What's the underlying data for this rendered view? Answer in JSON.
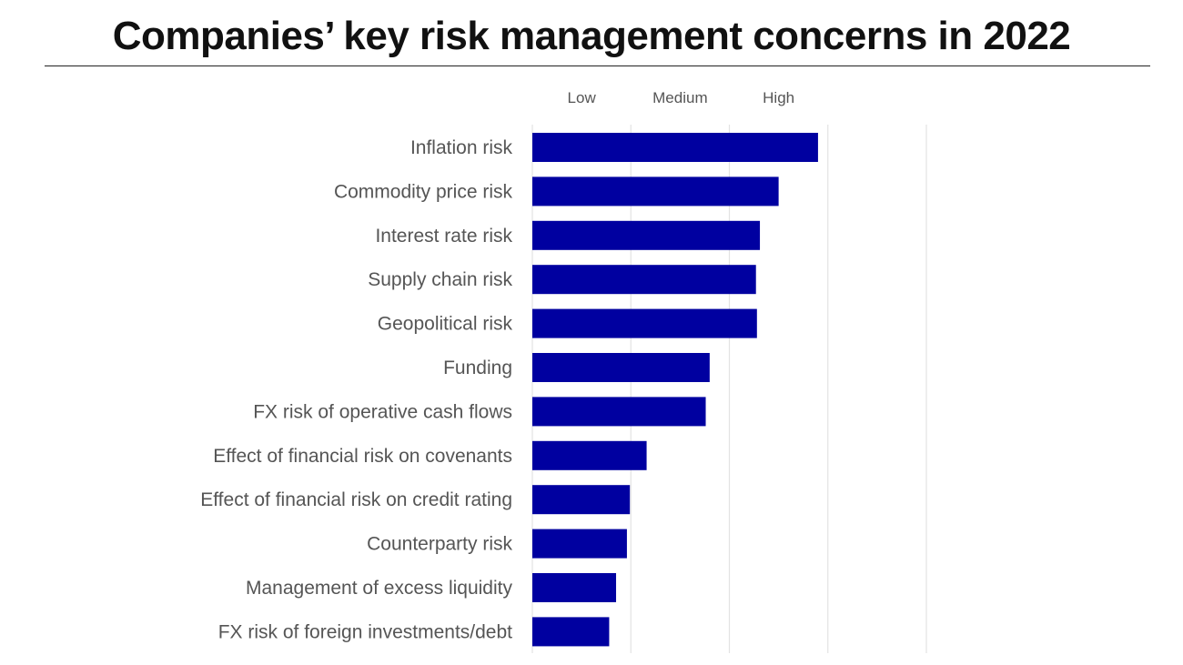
{
  "chart_data": {
    "type": "bar",
    "orientation": "horizontal",
    "title": "Companies’ key risk management concerns in 2022",
    "categories": [
      "Inflation risk",
      "Commodity price risk",
      "Interest rate risk",
      "Supply chain risk",
      "Geopolitical risk",
      "Funding",
      "FX risk of operative cash flows",
      "Effect of financial risk on covenants",
      "Effect of financial risk on credit rating",
      "Counterparty risk",
      "Management of excess liquidity",
      "FX risk of foreign investments/debt"
    ],
    "values": [
      2.9,
      2.5,
      2.31,
      2.27,
      2.28,
      1.8,
      1.76,
      1.16,
      0.99,
      0.96,
      0.85,
      0.78
    ],
    "xlim": [
      0,
      4
    ],
    "x_tick_labels": [
      {
        "value": 0.5,
        "label": "Low"
      },
      {
        "value": 1.5,
        "label": "Medium"
      },
      {
        "value": 2.5,
        "label": "High"
      }
    ],
    "gridlines_at": [
      0,
      1,
      2,
      3,
      4
    ],
    "grid": true,
    "bar_color": "#0000A0",
    "xlabel": "",
    "ylabel": ""
  }
}
